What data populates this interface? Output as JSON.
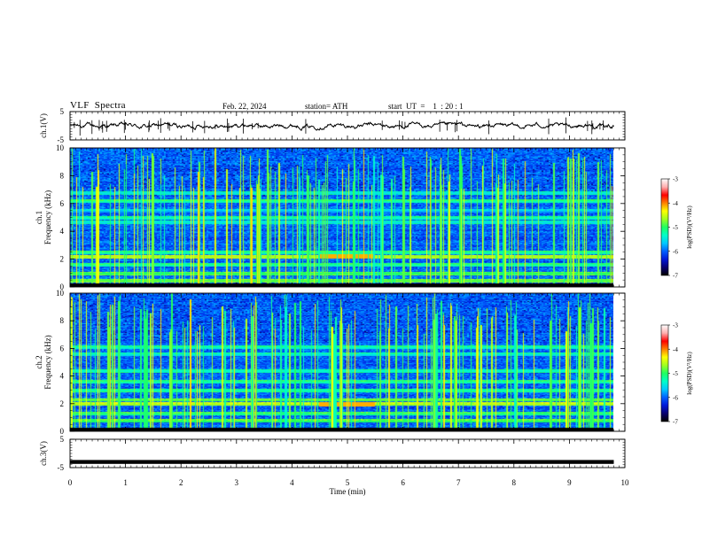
{
  "header": {
    "title": "VLF  Spectra",
    "date": "Feb. 22, 2024",
    "station": "station= ATH",
    "start": "start  UT  =    1  : 20 : 1"
  },
  "colors": {
    "colormap": [
      "#000000",
      "#08006e",
      "#0018d8",
      "#0060ff",
      "#00c8ff",
      "#00ffc8",
      "#20ff60",
      "#a0ff20",
      "#ffff00",
      "#ff8000",
      "#ff0000",
      "#ffb0b0",
      "#ffffff"
    ],
    "trace": "#000000"
  },
  "chart_data": [
    {
      "type": "line",
      "name": "ch1-voltage",
      "ylabel": "ch.1(V)",
      "ylim": [
        -5,
        5
      ],
      "yticks": [
        "5",
        "-5"
      ],
      "xlim": [
        0,
        10
      ],
      "baseline": 0
    },
    {
      "type": "heatmap",
      "name": "ch1-spectrogram",
      "ylabel": "ch.1\nFrequency (kHz)",
      "ylabel_line1": "ch.1",
      "ylabel_line2": "Frequency (kHz)",
      "ylim": [
        0,
        10
      ],
      "yticks": [
        "0",
        "2",
        "4",
        "6",
        "8",
        "10"
      ],
      "xlim": [
        0,
        10
      ],
      "data_end_min": 9.8,
      "bands_khz": [
        {
          "freq": 0.5,
          "level": 0.85
        },
        {
          "freq": 1.0,
          "level": 0.8
        },
        {
          "freq": 1.6,
          "level": 0.7
        },
        {
          "freq": 2.2,
          "level": 0.95
        },
        {
          "freq": 2.5,
          "level": 0.7
        },
        {
          "freq": 4.7,
          "level": 0.6
        },
        {
          "freq": 5.0,
          "level": 0.65
        },
        {
          "freq": 5.5,
          "level": 0.5
        },
        {
          "freq": 6.2,
          "level": 0.7
        },
        {
          "freq": 6.8,
          "level": 0.6
        }
      ],
      "colorbar": {
        "label": "log(PSD)(V²/Hz)",
        "ticks": [
          "-3",
          "-4",
          "-5",
          "-6",
          "-7"
        ],
        "range": [
          -7,
          -3
        ]
      }
    },
    {
      "type": "heatmap",
      "name": "ch2-spectrogram",
      "ylabel": "ch.2\nFrequency (kHz)",
      "ylabel_line1": "ch.2",
      "ylabel_line2": "Frequency (kHz)",
      "ylim": [
        0,
        10
      ],
      "yticks": [
        "0",
        "2",
        "4",
        "6",
        "8",
        "10"
      ],
      "xlim": [
        0,
        10
      ],
      "data_end_min": 9.8,
      "bands_khz": [
        {
          "freq": 0.8,
          "level": 0.8
        },
        {
          "freq": 1.3,
          "level": 0.75
        },
        {
          "freq": 2.0,
          "level": 0.95
        },
        {
          "freq": 2.3,
          "level": 0.85
        },
        {
          "freq": 3.0,
          "level": 0.7
        },
        {
          "freq": 3.6,
          "level": 0.7
        },
        {
          "freq": 4.4,
          "level": 0.65
        },
        {
          "freq": 5.6,
          "level": 0.6
        },
        {
          "freq": 6.1,
          "level": 0.65
        }
      ],
      "colorbar": {
        "label": "log(PSD)(V²/Hz)",
        "ticks": [
          "-3",
          "-4",
          "-5",
          "-6",
          "-7"
        ],
        "range": [
          -7,
          -3
        ]
      }
    },
    {
      "type": "line",
      "name": "ch3-voltage",
      "ylabel": "ch.3(V)",
      "ylim": [
        -5,
        5
      ],
      "yticks": [
        "5",
        "-5"
      ],
      "xlim": [
        0,
        10
      ],
      "baseline": -3
    }
  ],
  "xaxis": {
    "label": "Time  (min)",
    "ticks": [
      "0",
      "1",
      "2",
      "3",
      "4",
      "5",
      "6",
      "7",
      "8",
      "9",
      "10"
    ]
  }
}
